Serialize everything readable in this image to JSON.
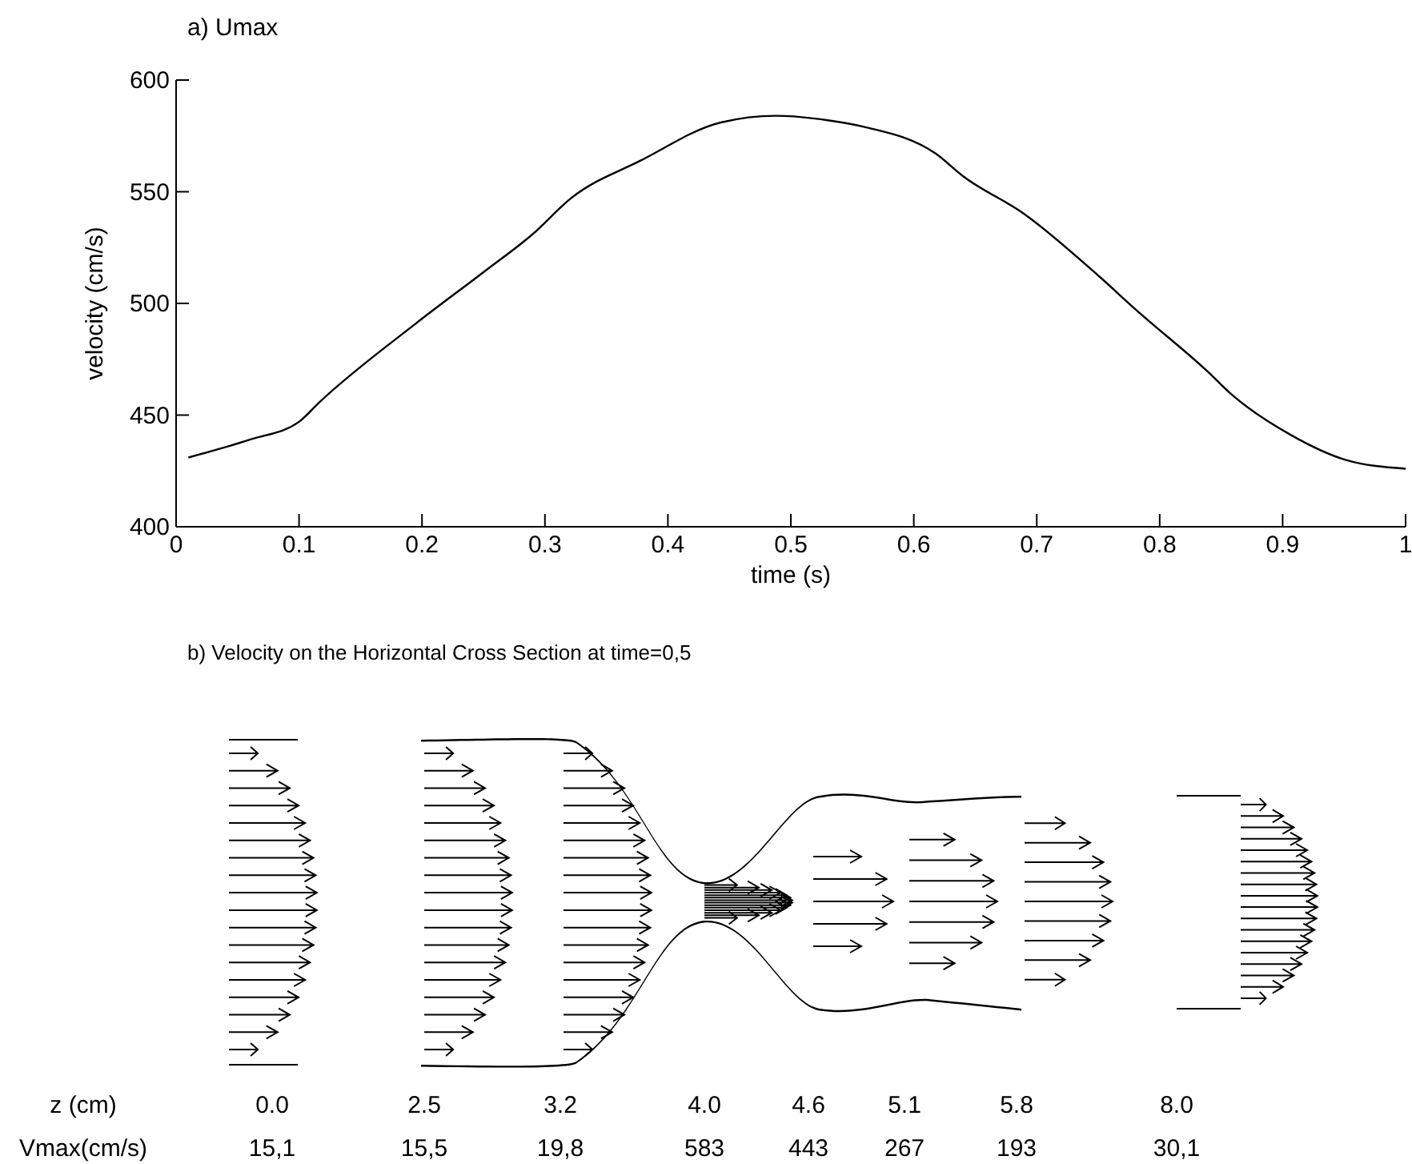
{
  "chart_data": [
    {
      "type": "line",
      "title": "a) Umax",
      "xlabel": "time (s)",
      "ylabel": "velocity (cm/s)",
      "xlim": [
        0,
        1
      ],
      "xticks": [
        0,
        0.1,
        0.2,
        0.3,
        0.4,
        0.5,
        0.6,
        0.7,
        0.8,
        0.9,
        1
      ],
      "ylim": [
        400,
        600
      ],
      "yticks": [
        400,
        450,
        500,
        550,
        600
      ],
      "grid": false,
      "marker": "none",
      "line_style": "solid",
      "series": [
        {
          "color": "#000000",
          "x": [
            0.01,
            0.06,
            0.1,
            0.117,
            0.195,
            0.25,
            0.29,
            0.321,
            0.378,
            0.443,
            0.488,
            0.53,
            0.56,
            0.618,
            0.64,
            0.69,
            0.751,
            0.781,
            0.838,
            0.859,
            0.907,
            0.951,
            1.0
          ],
          "values": [
            431,
            439,
            447,
            456,
            491,
            514,
            531,
            547,
            564,
            581,
            584,
            582,
            579,
            567,
            557,
            540,
            512,
            497,
            470,
            459,
            441,
            430,
            426
          ]
        }
      ]
    },
    {
      "type": "other",
      "title": "b) Velocity on the Horizontal Cross Section at time=0,5",
      "xlabel": "z (cm)",
      "ylabel": "Vmax(cm/s)",
      "categories": [
        "0.0",
        "2.5",
        "3.2",
        "4.0",
        "4.6",
        "5.1",
        "5.8",
        "8.0"
      ],
      "values": [
        15.1,
        15.5,
        19.8,
        583,
        443,
        267,
        193,
        30.1
      ],
      "value_labels": [
        "15,1",
        "15,5",
        "19,8",
        "583",
        "443",
        "267",
        "193",
        "30,1"
      ]
    }
  ]
}
